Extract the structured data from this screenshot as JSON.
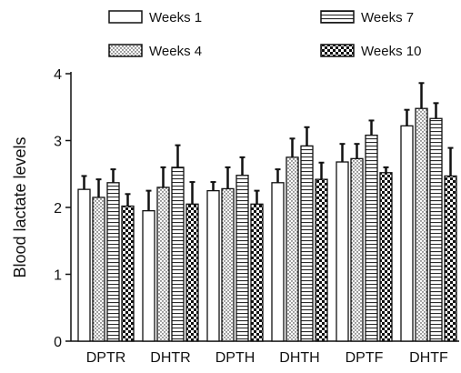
{
  "chart_data": {
    "type": "bar",
    "title": "",
    "xlabel": "",
    "ylabel": "Blood lactate levels",
    "ylim": [
      0,
      4
    ],
    "yticks": [
      "0",
      "1",
      "2",
      "3",
      "4"
    ],
    "categories": [
      "DPTR",
      "DHTR",
      "DPTH",
      "DHTH",
      "DPTF",
      "DHTF"
    ],
    "legend_position": "top",
    "series": [
      {
        "name": "Weeks 1",
        "pattern": "plain",
        "values": [
          2.27,
          1.95,
          2.25,
          2.37,
          2.68,
          3.22
        ],
        "errors": [
          0.2,
          0.3,
          0.13,
          0.2,
          0.27,
          0.24
        ]
      },
      {
        "name": "Weeks 4",
        "pattern": "dots",
        "values": [
          2.15,
          2.3,
          2.28,
          2.75,
          2.73,
          3.48
        ],
        "errors": [
          0.27,
          0.3,
          0.32,
          0.28,
          0.22,
          0.38
        ]
      },
      {
        "name": "Weeks 7",
        "pattern": "hstripe",
        "values": [
          2.37,
          2.6,
          2.48,
          2.92,
          3.08,
          3.33
        ],
        "errors": [
          0.2,
          0.33,
          0.27,
          0.28,
          0.22,
          0.23
        ]
      },
      {
        "name": "Weeks 10",
        "pattern": "checker",
        "values": [
          2.02,
          2.05,
          2.05,
          2.42,
          2.52,
          2.47
        ],
        "errors": [
          0.18,
          0.33,
          0.2,
          0.25,
          0.08,
          0.42
        ]
      }
    ],
    "colors": {
      "stroke": "#111111",
      "fill": "#ffffff"
    }
  }
}
